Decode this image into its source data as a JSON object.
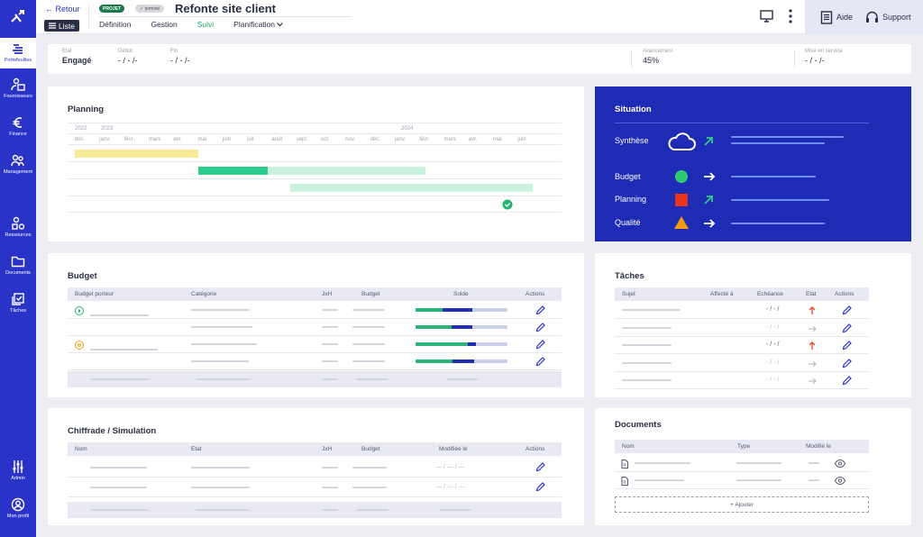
{
  "sidebar": {
    "items": [
      {
        "label": "Portefeuilles",
        "icon": "portfolio-icon"
      },
      {
        "label": "Fournisseurs",
        "icon": "suppliers-icon"
      },
      {
        "label": "Finance",
        "icon": "euro-icon"
      },
      {
        "label": "Management",
        "icon": "users-icon"
      },
      {
        "label": "Ressources",
        "icon": "resources-icon"
      },
      {
        "label": "Documents",
        "icon": "folder-icon"
      },
      {
        "label": "Tâches",
        "icon": "tasks-icon"
      },
      {
        "label": "Admin",
        "icon": "sliders-icon"
      },
      {
        "label": "Mon profil",
        "icon": "user-circle-icon"
      }
    ]
  },
  "header": {
    "back_label": "← Retour",
    "liste_label": "Liste",
    "badge_projet": "PROJET",
    "badge_status": "✓ terminé",
    "title": "Refonte site client",
    "tabs": [
      "Définition",
      "Gestion",
      "Suivi",
      "Planification"
    ],
    "active_tab": "Suivi",
    "help_label": "Aide",
    "support_label": "Support"
  },
  "summary": {
    "etat_label": "Etat",
    "etat_value": "Engagé",
    "debut_label": "Début",
    "debut_value": "- / - /-",
    "fin_label": "Fin",
    "fin_value": "- / - /-",
    "avancement_label": "Avancement",
    "avancement_value": "45%",
    "maj_label": "Mise en service",
    "maj_value": "- / - /-"
  },
  "planning": {
    "title": "Planning",
    "years": [
      "2022",
      "2023",
      "2024"
    ],
    "months": [
      "déc.",
      "janv.",
      "févr.",
      "mars",
      "avr.",
      "mai",
      "juin",
      "juil.",
      "août",
      "sept.",
      "oct.",
      "nov.",
      "déc.",
      "janv.",
      "févr.",
      "mars",
      "avr.",
      "mai",
      "juin"
    ],
    "colors": {
      "yellow": "#f9ea9a",
      "green_dark": "#2ecc8a",
      "green_light": "#c9f1de",
      "check": "#1fb56f"
    }
  },
  "situation": {
    "title": "Situation",
    "rows": [
      {
        "label": "Synthèse",
        "indicator": "cloud-icon",
        "trend": "arrow-up-right-icon"
      },
      {
        "label": "Budget",
        "indicator": "green-circle",
        "trend": "arrow-right-icon",
        "color": "#2ecc71"
      },
      {
        "label": "Planning",
        "indicator": "red-square",
        "trend": "arrow-up-right-icon",
        "color": "#e8341c"
      },
      {
        "label": "Qualité",
        "indicator": "orange-triangle",
        "trend": "arrow-right-icon",
        "color": "#f39c12"
      }
    ]
  },
  "budget": {
    "title": "Budget",
    "columns": [
      "Budget porteur",
      "Catégorie",
      "JxH",
      "Budget",
      "Solde",
      "Actions"
    ]
  },
  "taches": {
    "title": "Tâches",
    "columns": [
      "Sujet",
      "Affecté à",
      "Echéance",
      "Etat",
      "Actions"
    ],
    "date_placeholder": "- / - /"
  },
  "chiffrade": {
    "title": "Chiffrade / Simulation",
    "columns": [
      "Nom",
      "Etat",
      "JxH",
      "Budget",
      "Modifiée le",
      "Actions"
    ],
    "date_placeholder": "— / — / —"
  },
  "documents": {
    "title": "Documents",
    "columns": [
      "Nom",
      "Type",
      "Modifié le"
    ],
    "add_label": "+ Ajouter"
  }
}
